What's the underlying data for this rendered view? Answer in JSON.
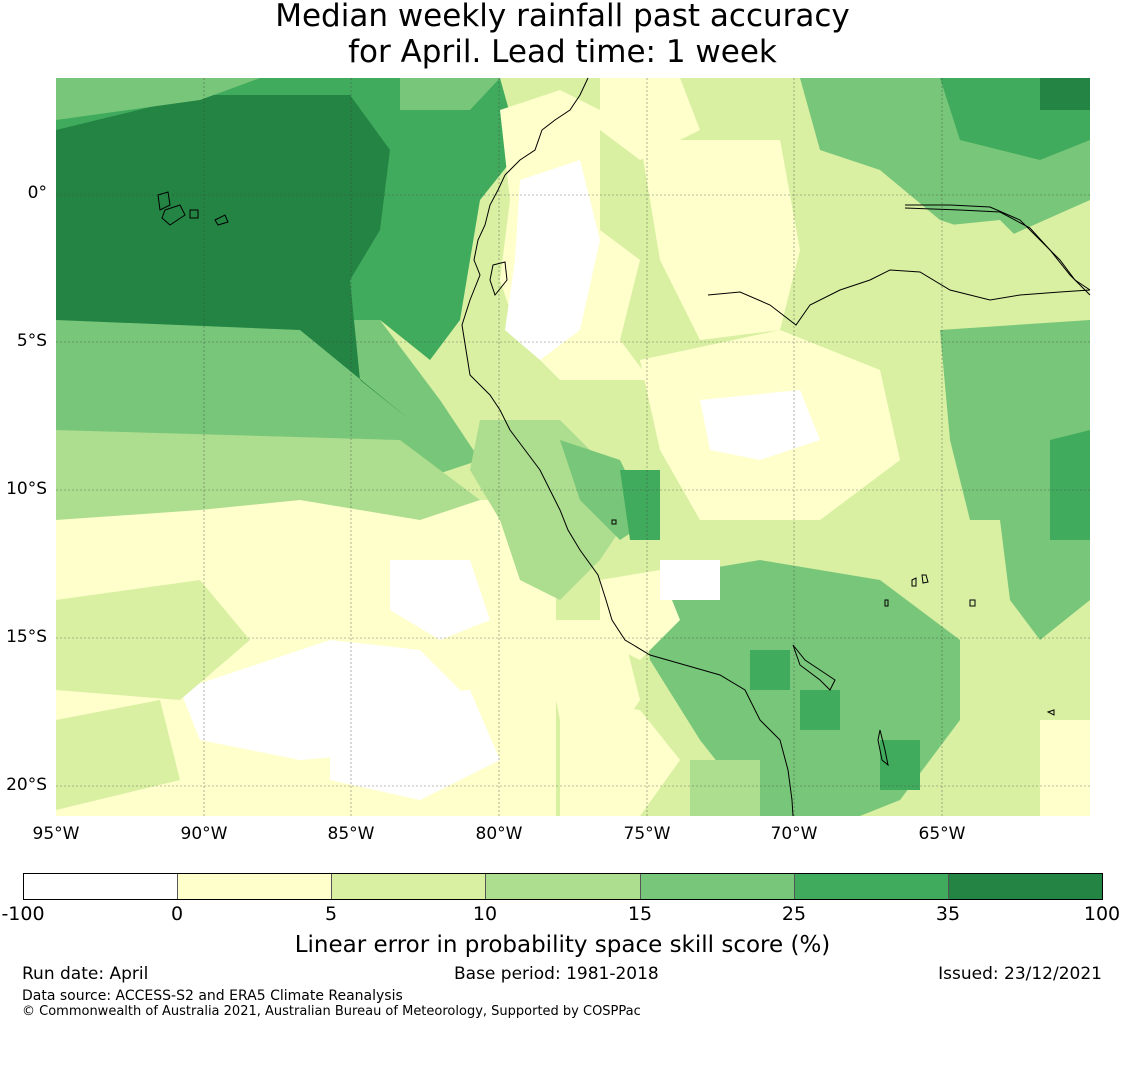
{
  "title": {
    "line1": "Median weekly rainfall past accuracy",
    "line2": "for April. Lead time: 1 week"
  },
  "map": {
    "lat_ticks": [
      "0°",
      "5°S",
      "10°S",
      "15°S",
      "20°S"
    ],
    "lon_ticks": [
      "95°W",
      "90°W",
      "85°W",
      "80°W",
      "75°W",
      "70°W",
      "65°W"
    ],
    "region": "Eastern Pacific / Peru / western South America"
  },
  "colorbar": {
    "ticks": [
      "-100",
      "0",
      "5",
      "10",
      "15",
      "25",
      "35",
      "100"
    ],
    "colors": [
      "#ffffff",
      "#ffffcc",
      "#d9f0a3",
      "#addd8e",
      "#78c679",
      "#41ab5d",
      "#238443"
    ],
    "label": "Linear error in probability space skill score (%)"
  },
  "footer": {
    "run_date": "Run date: April",
    "base_period": "Base period: 1981-2018",
    "issued": "Issued: 23/12/2021",
    "data_source": "Data source: ACCESS-S2 and ERA5 Climate Reanalysis",
    "copyright": "© Commonwealth of Australia 2021, Australian Bureau of Meteorology, Supported by COSPPac"
  }
}
